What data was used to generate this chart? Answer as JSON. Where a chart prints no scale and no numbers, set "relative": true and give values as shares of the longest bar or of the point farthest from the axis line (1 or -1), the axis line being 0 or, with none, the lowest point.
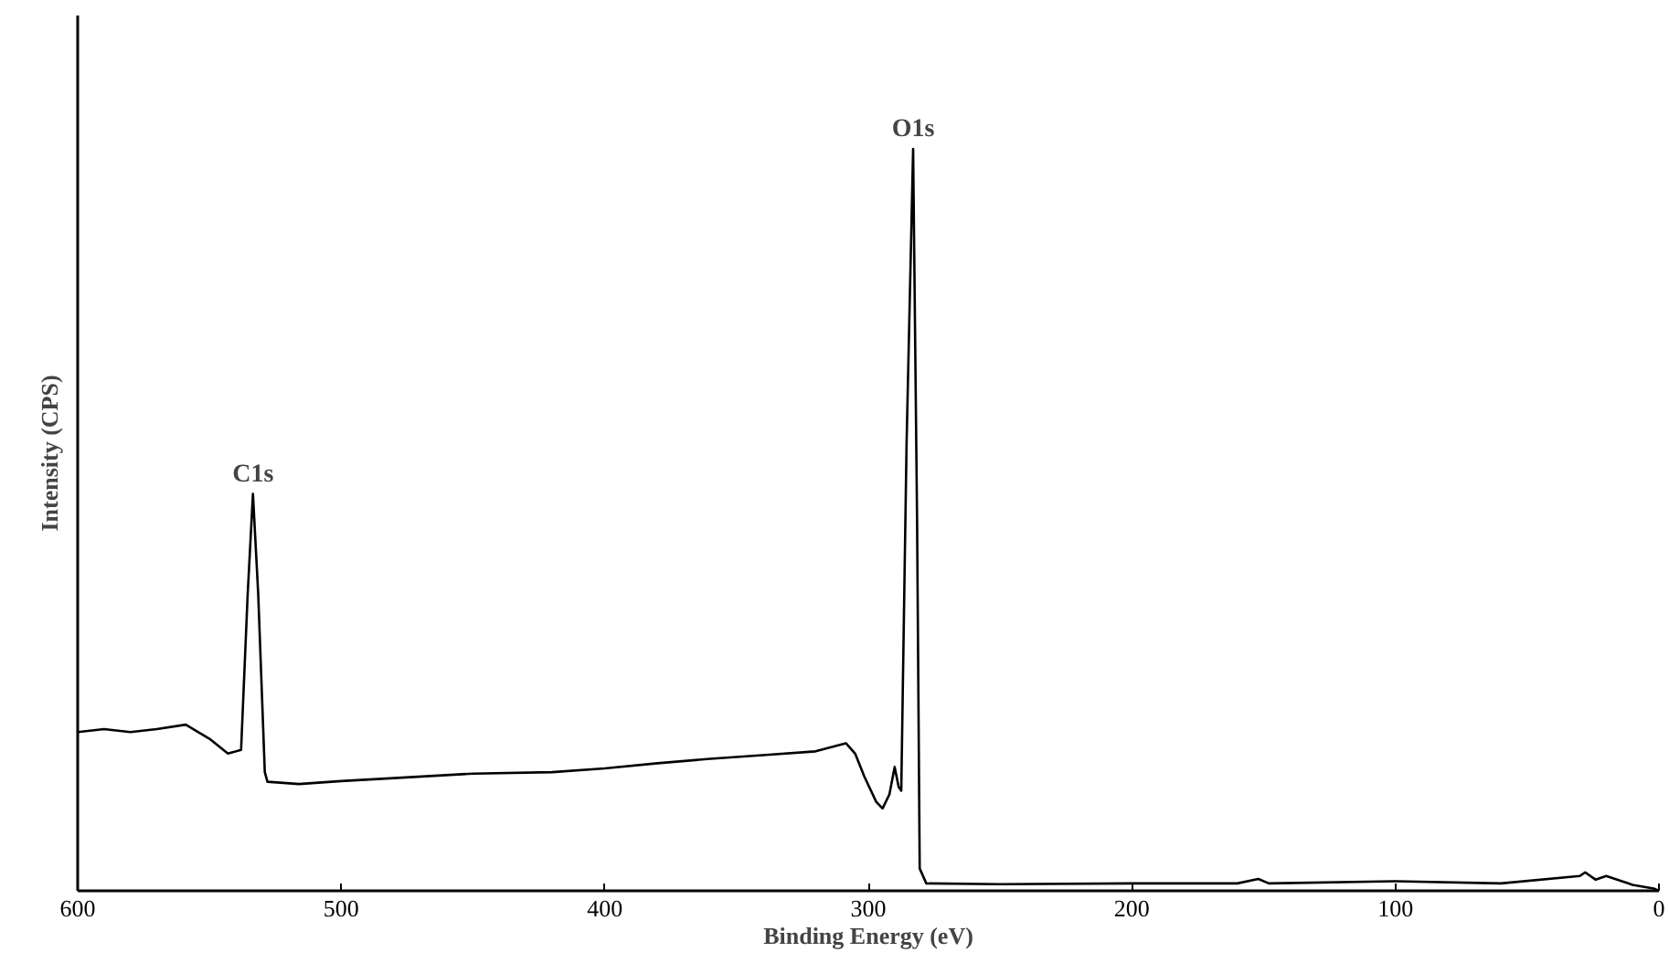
{
  "chart_data": {
    "type": "line",
    "xlabel": "Binding Energy (eV)",
    "ylabel": "Intensity (CPS)",
    "relative": true,
    "tick_labels": "x",
    "xlim": [
      600,
      0
    ],
    "xticks": [
      600,
      500,
      400,
      300,
      200,
      100,
      0
    ],
    "series": [
      {
        "color": "#000000",
        "x": [
          600,
          590,
          580,
          570,
          559,
          550,
          543,
          538,
          535.5,
          533.5,
          531.5,
          529,
          528,
          516,
          500,
          480,
          450,
          420,
          400,
          380,
          360,
          340,
          320,
          308.5,
          305,
          301.5,
          297,
          294.6,
          292,
          290,
          288.5,
          287.5,
          285.5,
          283,
          281.5,
          280.5,
          278,
          250,
          200,
          160,
          152,
          148,
          100,
          60,
          30,
          28,
          24,
          20,
          10,
          2,
          0
        ],
        "values": [
          0.214,
          0.218,
          0.214,
          0.218,
          0.224,
          0.205,
          0.185,
          0.19,
          0.4,
          0.535,
          0.4,
          0.16,
          0.147,
          0.144,
          0.148,
          0.152,
          0.158,
          0.16,
          0.165,
          0.172,
          0.178,
          0.183,
          0.188,
          0.199,
          0.185,
          0.154,
          0.12,
          0.111,
          0.13,
          0.167,
          0.14,
          0.135,
          0.6,
          1.0,
          0.5,
          0.03,
          0.01,
          0.009,
          0.01,
          0.01,
          0.016,
          0.01,
          0.013,
          0.01,
          0.02,
          0.025,
          0.015,
          0.02,
          0.008,
          0.003,
          0
        ]
      }
    ],
    "annotations": [
      {
        "text": "C1s",
        "x": 533.5,
        "y": 0.535
      },
      {
        "text": "O1s",
        "x": 283,
        "y": 1.0
      }
    ]
  }
}
